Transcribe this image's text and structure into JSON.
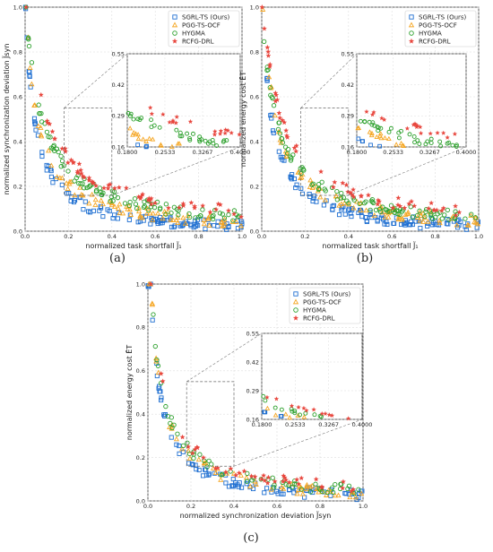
{
  "colors": {
    "SGRL-TS (Ours)": "#1f6fd1",
    "PGG-TS-OCF": "#f5a623",
    "HYGMA": "#2ca02c",
    "RCFG-DRL": "#e8453c"
  },
  "markers": {
    "SGRL-TS (Ours)": "square",
    "PGG-TS-OCF": "triangle",
    "HYGMA": "circle",
    "RCFG-DRL": "star"
  },
  "chart_data": [
    {
      "id": "a",
      "type": "scatter",
      "caption": "(a)",
      "xlabel": "normalized task shortfall J̃₁",
      "ylabel": "normalized synchronization deviation J̃syn",
      "xlim": [
        0,
        1
      ],
      "ylim": [
        0,
        1
      ],
      "xticks": [
        "0.0",
        "0.2",
        "0.4",
        "0.6",
        "0.8",
        "1.0"
      ],
      "yticks": [
        "0.0",
        "0.2",
        "0.4",
        "0.6",
        "0.8",
        "1.0"
      ],
      "grid": true,
      "legend": "top-right",
      "series": [
        {
          "name": "SGRL-TS (Ours)",
          "b": 0.043,
          "a": 0.04,
          "n": 110,
          "x0": 0.0,
          "x1": 1.0
        },
        {
          "name": "PGG-TS-OCF",
          "b": 0.055,
          "a": 0.05,
          "n": 80,
          "x0": 0.0,
          "x1": 1.0
        },
        {
          "name": "HYGMA",
          "b": 0.075,
          "a": 0.07,
          "n": 100,
          "x0": 0.0,
          "x1": 1.0
        },
        {
          "name": "RCFG-DRL",
          "b": 0.09,
          "a": 0.08,
          "n": 60,
          "x0": 0.0,
          "x1": 1.0
        }
      ],
      "inset": {
        "xlim": [
          0.18,
          0.4
        ],
        "ylim": [
          0.16,
          0.55
        ],
        "xticks": [
          "0.1800",
          "0.2533",
          "0.3267",
          "0.4000"
        ],
        "yticks": [
          "0.16",
          "0.29",
          "0.42",
          "0.55"
        ]
      }
    },
    {
      "id": "b",
      "type": "scatter",
      "caption": "(b)",
      "xlabel": "normalized task shortfall J̃₁",
      "ylabel": "normalized energy cost ĒT",
      "xlim": [
        0,
        1
      ],
      "ylim": [
        0,
        1
      ],
      "xticks": [
        "0.0",
        "0.2",
        "0.4",
        "0.6",
        "0.8",
        "1.0"
      ],
      "yticks": [
        "0.0",
        "0.2",
        "0.4",
        "0.6",
        "0.8",
        "1.0"
      ],
      "grid": true,
      "legend": "top-right",
      "series": [
        {
          "name": "SGRL-TS (Ours)",
          "b": 0.045,
          "a": 0.04,
          "n": 110,
          "x0": 0.0,
          "x1": 1.0
        },
        {
          "name": "PGG-TS-OCF",
          "b": 0.06,
          "a": 0.05,
          "n": 80,
          "x0": 0.0,
          "x1": 1.0
        },
        {
          "name": "HYGMA",
          "b": 0.07,
          "a": 0.07,
          "n": 100,
          "x0": 0.0,
          "x1": 1.0
        },
        {
          "name": "RCFG-DRL",
          "b": 0.085,
          "a": 0.08,
          "n": 55,
          "x0": 0.0,
          "x1": 1.0
        }
      ],
      "inset": {
        "xlim": [
          0.18,
          0.4
        ],
        "ylim": [
          0.16,
          0.55
        ],
        "xticks": [
          "0.1800",
          "0.2533",
          "0.3267",
          "0.4000"
        ],
        "yticks": [
          "0.16",
          "0.29",
          "0.42",
          "0.55"
        ]
      }
    },
    {
      "id": "c",
      "type": "scatter",
      "caption": "(c)",
      "xlabel": "normalized synchronization deviation J̃syn",
      "ylabel": "normalized energy cost ĒT",
      "xlim": [
        0,
        1
      ],
      "ylim": [
        0,
        1
      ],
      "xticks": [
        "0.0",
        "0.2",
        "0.4",
        "0.6",
        "0.8",
        "1.0"
      ],
      "yticks": [
        "0.0",
        "0.2",
        "0.4",
        "0.6",
        "0.8",
        "1.0"
      ],
      "grid": true,
      "legend": "top-right",
      "series": [
        {
          "name": "SGRL-TS (Ours)",
          "b": 0.045,
          "a": 0.03,
          "n": 90,
          "x0": 0.0,
          "x1": 1.0
        },
        {
          "name": "PGG-TS-OCF",
          "b": 0.05,
          "a": 0.035,
          "n": 60,
          "x0": 0.0,
          "x1": 1.0
        },
        {
          "name": "HYGMA",
          "b": 0.055,
          "a": 0.04,
          "n": 60,
          "x0": 0.0,
          "x1": 1.0
        },
        {
          "name": "RCFG-DRL",
          "b": 0.06,
          "a": 0.045,
          "n": 40,
          "x0": 0.0,
          "x1": 1.0
        }
      ],
      "inset": {
        "xlim": [
          0.18,
          0.4
        ],
        "ylim": [
          0.16,
          0.55
        ],
        "xticks": [
          "0.1800",
          "0.2533",
          "0.3267",
          "0.4000"
        ],
        "yticks": [
          "0.16",
          "0.29",
          "0.42",
          "0.55"
        ]
      }
    }
  ]
}
